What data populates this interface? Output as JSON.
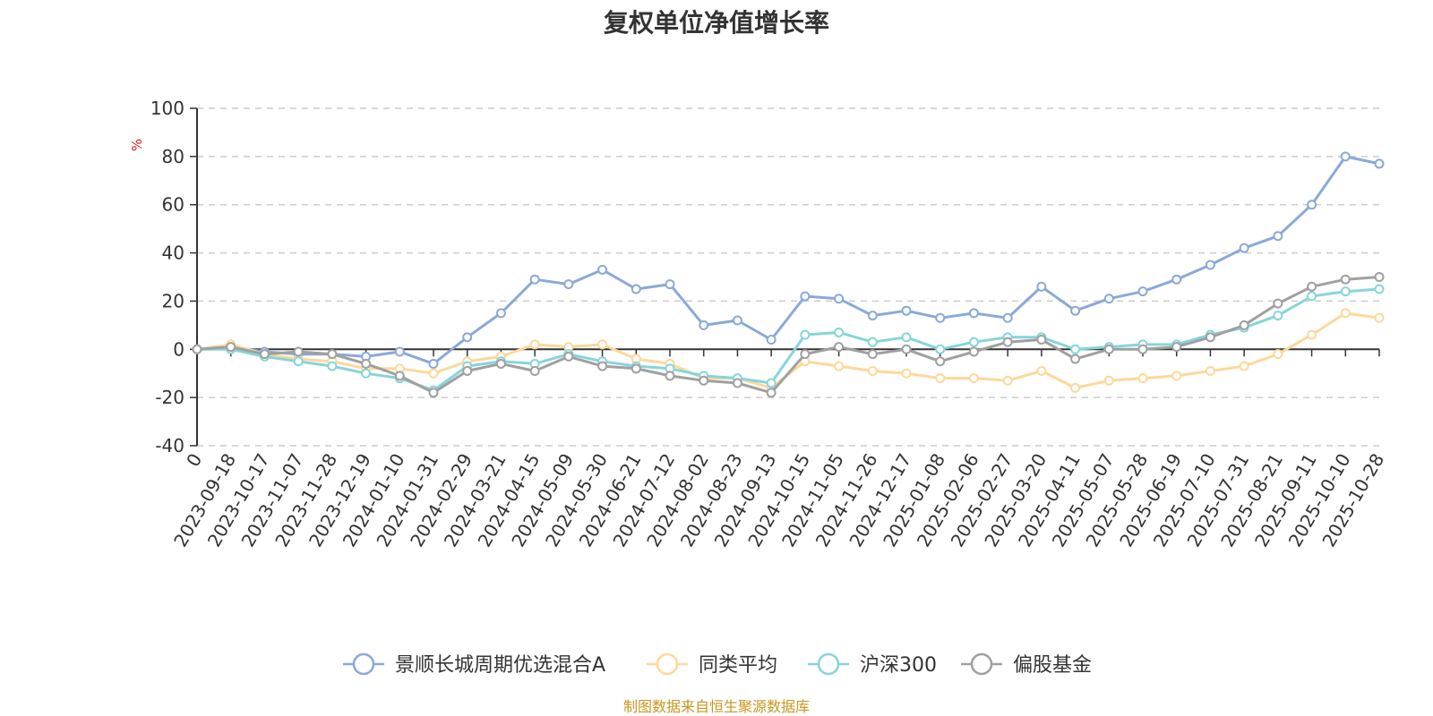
{
  "chart_data": {
    "type": "line",
    "title": "复权单位净值增长率",
    "ylabel": "%",
    "ylim": [
      -40,
      100
    ],
    "yticks": [
      100,
      80,
      60,
      40,
      20,
      0,
      -20,
      -40
    ],
    "grid": true,
    "legend_position": "bottom",
    "x_tick_labels": [
      "0",
      "2023-09-18",
      "2023-10-17",
      "2023-11-07",
      "2023-11-28",
      "2023-12-19",
      "2024-01-10",
      "2024-01-31",
      "2024-02-29",
      "2024-03-21",
      "2024-04-15",
      "2024-05-09",
      "2024-05-30",
      "2024-06-21",
      "2024-07-12",
      "2024-08-02",
      "2024-08-23",
      "2024-09-13",
      "2024-10-15",
      "2024-11-05",
      "2024-11-26",
      "2024-12-17",
      "2025-01-08",
      "2025-02-06",
      "2025-02-27",
      "2025-03-20",
      "2025-04-11",
      "2025-05-07",
      "2025-05-28",
      "2025-06-19",
      "2025-07-10",
      "2025-07-31",
      "2025-08-21",
      "2025-09-11",
      "2025-10-10",
      "2025-10-28"
    ],
    "series": [
      {
        "name": "景顺长城周期优选混合A",
        "color": "#8aa9d8",
        "values": [
          0,
          1,
          -1,
          -2,
          -2,
          -3,
          -1,
          -6,
          5,
          15,
          29,
          27,
          33,
          25,
          27,
          10,
          12,
          4,
          22,
          21,
          14,
          16,
          13,
          15,
          13,
          26,
          16,
          21,
          24,
          29,
          35,
          42,
          47,
          60,
          80,
          77
        ]
      },
      {
        "name": "同类平均",
        "color": "#fdd89a",
        "values": [
          0,
          2,
          -2,
          -4,
          -5,
          -8,
          -8,
          -10,
          -5,
          -3,
          2,
          1,
          2,
          -4,
          -6,
          -12,
          -12,
          -16,
          -5,
          -7,
          -9,
          -10,
          -12,
          -12,
          -13,
          -9,
          -16,
          -13,
          -12,
          -11,
          -9,
          -7,
          -2,
          6,
          15,
          13
        ]
      },
      {
        "name": "沪深300",
        "color": "#86d5d9",
        "values": [
          0,
          0,
          -3,
          -5,
          -7,
          -10,
          -12,
          -17,
          -7,
          -5,
          -6,
          -2,
          -5,
          -7,
          -8,
          -11,
          -12,
          -14,
          6,
          7,
          3,
          5,
          0,
          3,
          5,
          5,
          0,
          1,
          2,
          2,
          6,
          9,
          14,
          22,
          24,
          25
        ]
      },
      {
        "name": "偏股基金",
        "color": "#a0a0a0",
        "values": [
          0,
          1,
          -2,
          -1,
          -2,
          -6,
          -11,
          -18,
          -9,
          -6,
          -9,
          -3,
          -7,
          -8,
          -11,
          -13,
          -14,
          -18,
          -2,
          1,
          -2,
          0,
          -5,
          -1,
          3,
          4,
          -4,
          0,
          0,
          1,
          5,
          10,
          19,
          26,
          29,
          30
        ]
      }
    ],
    "source_note": "制图数据来自恒生聚源数据库"
  }
}
